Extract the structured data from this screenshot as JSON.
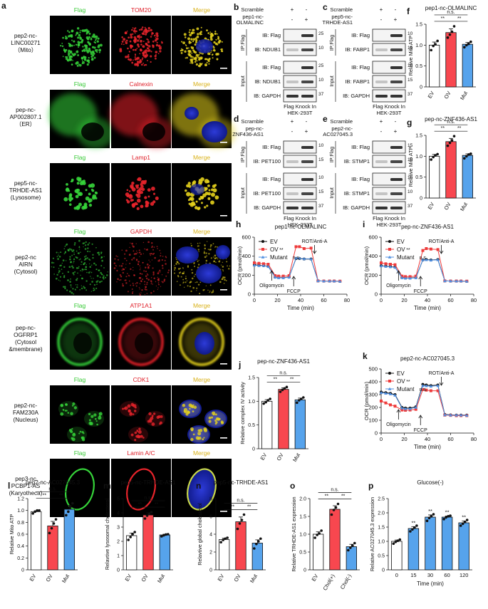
{
  "panel_letters": {
    "a": "a",
    "b": "b",
    "c": "c",
    "d": "d",
    "e": "e",
    "f": "f",
    "g": "g",
    "h": "h",
    "i": "i",
    "j": "j",
    "k": "k",
    "l": "l",
    "m": "m",
    "n": "n",
    "o": "o",
    "p": "p"
  },
  "panel_a": {
    "rows": [
      {
        "label": "pep2-nc-\nLINC00271\n（Mito）",
        "stains": [
          "Flag",
          "TOM20",
          "Merge"
        ],
        "pattern": "mito"
      },
      {
        "label": "pep-nc-\nAP002807.1\n（ER）",
        "stains": [
          "Flag",
          "Calnexin",
          "Merge"
        ],
        "pattern": "er"
      },
      {
        "label": "pep5-nc-\nTRHDE-AS1\n(Lysosome)",
        "stains": [
          "Flag",
          "Lamp1",
          "Merge"
        ],
        "pattern": "lyso"
      },
      {
        "label": "pep2-nc\nAIRN\n(Cytosol)",
        "stains": [
          "Flag",
          "GAPDH",
          "Merge"
        ],
        "pattern": "cyto"
      },
      {
        "label": "pep-nc-\nOGFRP1\n(Cytosol\n&membrane)",
        "stains": [
          "Flag",
          "ATP1A1",
          "Merge"
        ],
        "pattern": "mem"
      },
      {
        "label": "pep2-nc-\nFAM230A\n(Nucleus)",
        "stains": [
          "Flag",
          "CDK1",
          "Merge"
        ],
        "pattern": "nuc"
      },
      {
        "label": "pep3-nc\nPCBP1-AS\n(Karyotheca)",
        "stains": [
          "Flag",
          "Lamin A/C",
          "Merge"
        ],
        "pattern": "ring"
      }
    ]
  },
  "blots": [
    {
      "id": "b",
      "scramble": "Scramble",
      "construct": [
        "pep1-nc-",
        "OLMALINC"
      ],
      "signs1": [
        "+",
        "-"
      ],
      "signs2": [
        "-",
        "+"
      ],
      "ip": "IP:Flag",
      "input": "Input",
      "bands": [
        "IB: Flag",
        "IB: NDUB1",
        "IB: Flag",
        "IB: NDUB1",
        "IB: GAPDH"
      ],
      "mw": [
        "25",
        "10",
        "25",
        "10",
        "37"
      ],
      "footer": [
        "Flag Knock In",
        "HEK-293T"
      ]
    },
    {
      "id": "c",
      "scramble": "Scramble",
      "construct": [
        "pep5-nc-",
        "TRHDE-AS1"
      ],
      "signs1": [
        "+",
        "-"
      ],
      "signs2": [
        "-",
        "+"
      ],
      "ip": "IP:Flag",
      "input": "Input",
      "bands": [
        "IB: Flag",
        "IB: FABP1",
        "IB: Flag",
        "IB: FABP1",
        "IB: GAPDH"
      ],
      "mw": [
        "10",
        "15",
        "10",
        "15",
        "37"
      ],
      "footer": [
        "Flag Knock In",
        "HEK-293T"
      ]
    },
    {
      "id": "d",
      "scramble": "Scramble",
      "construct": [
        "pep-nc-",
        "ZNF436-AS1"
      ],
      "signs1": [
        "+",
        "-"
      ],
      "signs2": [
        "-",
        "+"
      ],
      "ip": "IP:Flag",
      "input": "Input",
      "bands": [
        "IB: Flag",
        "IB: PET100",
        "IB: Flag",
        "IB: PET100",
        "IB: GAPDH"
      ],
      "mw": [
        "10",
        "15",
        "10",
        "15",
        "37"
      ],
      "footer": [
        "Flag Knock In",
        "HEK-293T"
      ]
    },
    {
      "id": "e",
      "scramble": "Scramble",
      "construct": [
        "pep2-nc-",
        "AC027045.3"
      ],
      "signs1": [
        "+",
        "-"
      ],
      "signs2": [
        "-",
        "+"
      ],
      "ip": "IP:Flag",
      "input": "Input",
      "bands": [
        "IB: Flag",
        "IB: STMP1",
        "IB: Flag",
        "IB: STMP1",
        "IB: GAPDH"
      ],
      "mw": [
        "15",
        "10",
        "15",
        "10",
        "37"
      ],
      "footer": [
        "Flag Knock In",
        "HEK-293T"
      ]
    }
  ],
  "chart_data": [
    {
      "id": "f",
      "type": "bar",
      "title": "pep1-nc-OLMALINC",
      "ylabel": "Relative Mito ATP",
      "categories": [
        "EV",
        "OV",
        "Mut"
      ],
      "values": [
        1.0,
        1.3,
        1.02
      ],
      "points": [
        [
          0.88,
          0.98,
          1.02,
          1.1
        ],
        [
          1.18,
          1.25,
          1.32,
          1.45
        ],
        [
          0.95,
          1.0,
          1.03,
          1.08
        ]
      ],
      "ylim": [
        0,
        1.5
      ],
      "yticks": [
        0,
        0.5,
        1.0,
        1.5
      ],
      "colors": [
        "#ffffff",
        "#f8474f",
        "#56a3ec"
      ],
      "sig": [
        {
          "a": 0,
          "b": 2,
          "text": "n.s."
        },
        {
          "a": 0,
          "b": 1,
          "text": "**"
        },
        {
          "a": 1,
          "b": 2,
          "text": "**"
        }
      ]
    },
    {
      "id": "g",
      "type": "bar",
      "title": "pep-nc-ZNF436-AS1",
      "ylabel": "Relative Mito ATP",
      "categories": [
        "EV",
        "OV",
        "Mut"
      ],
      "values": [
        1.0,
        1.35,
        1.02
      ],
      "points": [
        [
          0.92,
          0.98,
          1.02,
          1.05
        ],
        [
          1.25,
          1.32,
          1.38,
          1.48
        ],
        [
          0.95,
          1.0,
          1.04,
          1.06
        ]
      ],
      "ylim": [
        0,
        1.5
      ],
      "yticks": [
        0,
        0.5,
        1.0,
        1.5
      ],
      "colors": [
        "#ffffff",
        "#f8474f",
        "#56a3ec"
      ],
      "sig": [
        {
          "a": 0,
          "b": 2,
          "text": "n.s."
        },
        {
          "a": 0,
          "b": 1,
          "text": "**"
        },
        {
          "a": 1,
          "b": 2,
          "text": "**"
        }
      ]
    },
    {
      "id": "j",
      "type": "bar",
      "title": "pep-nc-ZNF436-AS1",
      "ylabel": "Relative complex IV activity",
      "categories": [
        "EV",
        "OV",
        "Mut"
      ],
      "values": [
        1.0,
        1.25,
        1.03
      ],
      "points": [
        [
          0.95,
          0.98,
          1.02,
          1.05
        ],
        [
          1.2,
          1.24,
          1.27,
          1.3
        ],
        [
          0.97,
          1.02,
          1.05,
          1.08
        ]
      ],
      "ylim": [
        0,
        1.5
      ],
      "yticks": [
        0,
        0.5,
        1.0,
        1.5
      ],
      "colors": [
        "#ffffff",
        "#f8474f",
        "#56a3ec"
      ],
      "sig": [
        {
          "a": 0,
          "b": 2,
          "text": "n.s."
        },
        {
          "a": 0,
          "b": 1,
          "text": "**"
        },
        {
          "a": 1,
          "b": 2,
          "text": "**"
        }
      ]
    },
    {
      "id": "l",
      "type": "bar",
      "title": "pep2-nc-AC027045.3",
      "ylabel": "Relative Mito ATP",
      "categories": [
        "EV",
        "OV",
        "Mut"
      ],
      "values": [
        0.98,
        0.74,
        1.02
      ],
      "points": [
        [
          0.95,
          0.98,
          1.0,
          1.0
        ],
        [
          0.62,
          0.7,
          0.78,
          0.85
        ],
        [
          0.92,
          0.98,
          1.06,
          1.12
        ]
      ],
      "ylim": [
        0,
        1.2
      ],
      "yticks": [
        0,
        0.2,
        0.4,
        0.6,
        0.8,
        1.0,
        1.2
      ],
      "colors": [
        "#ffffff",
        "#f8474f",
        "#56a3ec"
      ],
      "sig": [
        {
          "a": 0,
          "b": 2,
          "text": "n.s."
        },
        {
          "a": 0,
          "b": 1,
          "text": "**"
        },
        {
          "a": 1,
          "b": 2,
          "text": "**"
        }
      ]
    },
    {
      "id": "m",
      "type": "bar",
      "title": "pep5-nc-TRHDE-AS1",
      "ylabel": "Relavtive lysosomal cholesterol",
      "categories": [
        "EV",
        "OV",
        "Mut"
      ],
      "values": [
        2.4,
        3.85,
        2.45
      ],
      "points": [
        [
          2.1,
          2.3,
          2.5,
          2.65
        ],
        [
          3.6,
          3.8,
          3.95,
          4.05
        ],
        [
          2.35,
          2.42,
          2.48,
          2.5
        ]
      ],
      "ylim": [
        0,
        5
      ],
      "yticks": [
        0,
        1,
        2,
        3,
        4,
        5
      ],
      "colors": [
        "#ffffff",
        "#f8474f",
        "#56a3ec"
      ],
      "sig": [
        {
          "a": 0,
          "b": 2,
          "text": "n.s."
        },
        {
          "a": 0,
          "b": 1,
          "text": "**"
        },
        {
          "a": 1,
          "b": 2,
          "text": "**"
        }
      ]
    },
    {
      "id": "n",
      "type": "bar",
      "title": "pep5-nc-TRHDE-AS1",
      "ylabel": "Relavtive global cholesterol",
      "categories": [
        "EV",
        "OV",
        "Mut"
      ],
      "values": [
        3.4,
        5.4,
        3.0
      ],
      "points": [
        [
          3.1,
          3.35,
          3.5,
          3.6
        ],
        [
          4.6,
          5.2,
          5.6,
          6.2
        ],
        [
          2.4,
          2.9,
          3.2,
          3.5
        ]
      ],
      "ylim": [
        0,
        8
      ],
      "yticks": [
        0,
        2,
        4,
        6,
        8
      ],
      "colors": [
        "#ffffff",
        "#f8474f",
        "#56a3ec"
      ],
      "sig": [
        {
          "a": 0,
          "b": 2,
          "text": "n.s."
        },
        {
          "a": 0,
          "b": 1,
          "text": "**"
        },
        {
          "a": 1,
          "b": 2,
          "text": "**"
        }
      ]
    },
    {
      "id": "o",
      "type": "bar",
      "title": "",
      "ylabel": "Relative TRHDE-AS1 expression",
      "categories": [
        "EV",
        "Chol(+)",
        "Chol(-)"
      ],
      "values": [
        1.0,
        1.7,
        0.65
      ],
      "points": [
        [
          0.9,
          0.98,
          1.02,
          1.1
        ],
        [
          1.55,
          1.68,
          1.75,
          1.85
        ],
        [
          0.55,
          0.62,
          0.68,
          0.75
        ]
      ],
      "ylim": [
        0,
        2.0
      ],
      "yticks": [
        0,
        0.5,
        1.0,
        1.5,
        2.0
      ],
      "colors": [
        "#ffffff",
        "#f8474f",
        "#56a3ec"
      ],
      "sig": [
        {
          "a": 0,
          "b": 2,
          "text": "n.s."
        },
        {
          "a": 0,
          "b": 1,
          "text": "**"
        },
        {
          "a": 1,
          "b": 2,
          "text": "**"
        }
      ]
    },
    {
      "id": "p",
      "type": "bar",
      "title": "Glucose(-)",
      "ylabel": "Relative AC027045.3 expression",
      "xlabel": "Time (min)",
      "categories": [
        "0",
        "15",
        "30",
        "60",
        "120"
      ],
      "values": [
        1.0,
        1.45,
        1.85,
        1.85,
        1.65
      ],
      "points": [
        [
          0.92,
          0.98,
          1.02,
          1.06
        ],
        [
          1.35,
          1.42,
          1.48,
          1.55
        ],
        [
          1.72,
          1.82,
          1.88,
          1.95
        ],
        [
          1.78,
          1.84,
          1.88,
          1.9
        ],
        [
          1.55,
          1.62,
          1.68,
          1.75
        ]
      ],
      "ylim": [
        0,
        2.5
      ],
      "yticks": [
        0,
        0.5,
        1.0,
        1.5,
        2.0,
        2.5
      ],
      "colors": [
        "#ffffff",
        "#56a3ec",
        "#56a3ec",
        "#56a3ec",
        "#56a3ec"
      ],
      "sig_single": [
        "",
        "**",
        "**",
        "**",
        "**"
      ]
    },
    {
      "id": "h",
      "type": "line",
      "title": "pep1-nc-OLMALINC",
      "ylabel": "OCR (pmol/min)",
      "xlabel": "Time (min)",
      "x": [
        0,
        4,
        8,
        12,
        18,
        21,
        25,
        30,
        36,
        39,
        43,
        49,
        55,
        60,
        65,
        69,
        74
      ],
      "xlim": [
        0,
        80
      ],
      "xticks": [
        0,
        20,
        40,
        60,
        80
      ],
      "ylim": [
        0,
        600
      ],
      "yticks": [
        0,
        200,
        400,
        600
      ],
      "series": [
        {
          "name": "EV",
          "sig": "",
          "color": "#111111",
          "marker": "circle",
          "values": [
            310,
            305,
            300,
            295,
            180,
            175,
            175,
            180,
            375,
            375,
            370,
            370,
            140,
            138,
            138,
            138,
            135
          ]
        },
        {
          "name": "OV",
          "sig": "**",
          "color": "#ee3b3b",
          "marker": "square",
          "values": [
            330,
            325,
            320,
            315,
            195,
            190,
            190,
            195,
            500,
            500,
            480,
            485,
            140,
            138,
            138,
            138,
            137
          ]
        },
        {
          "name": "Mutant",
          "sig": "n.s.",
          "color": "#4f8fe0",
          "marker": "triangle",
          "values": [
            305,
            300,
            300,
            290,
            178,
            172,
            172,
            178,
            380,
            378,
            372,
            372,
            140,
            138,
            138,
            138,
            135
          ]
        }
      ],
      "annotations": [
        {
          "text": "Oligomycin",
          "x": 15
        },
        {
          "text": "FCCP",
          "x": 34
        },
        {
          "text": "ROT/Anti-A",
          "x": 52
        }
      ]
    },
    {
      "id": "i",
      "type": "line",
      "title": "pep-nc-ZNF436-AS1",
      "ylabel": "OCR (pmol/min)",
      "xlabel": "Time (min)",
      "x": [
        0,
        4,
        8,
        12,
        18,
        21,
        25,
        30,
        36,
        39,
        43,
        49,
        55,
        60,
        65,
        69,
        74
      ],
      "xlim": [
        0,
        80
      ],
      "xticks": [
        0,
        20,
        40,
        60,
        80
      ],
      "ylim": [
        0,
        600
      ],
      "yticks": [
        0,
        200,
        400,
        600
      ],
      "series": [
        {
          "name": "EV",
          "sig": "",
          "color": "#111111",
          "marker": "circle",
          "values": [
            300,
            295,
            290,
            285,
            175,
            170,
            170,
            175,
            360,
            365,
            360,
            365,
            140,
            138,
            138,
            138,
            135
          ]
        },
        {
          "name": "OV",
          "sig": "**",
          "color": "#ee3b3b",
          "marker": "square",
          "values": [
            330,
            320,
            315,
            310,
            190,
            185,
            185,
            190,
            460,
            480,
            475,
            470,
            140,
            138,
            138,
            138,
            137
          ]
        },
        {
          "name": "Mutant",
          "sig": "n.s.",
          "color": "#4f8fe0",
          "marker": "triangle",
          "values": [
            298,
            292,
            288,
            282,
            172,
            168,
            168,
            172,
            362,
            362,
            358,
            362,
            140,
            138,
            138,
            138,
            135
          ]
        }
      ],
      "annotations": [
        {
          "text": "Oligomycin",
          "x": 15
        },
        {
          "text": "FCCP",
          "x": 34
        },
        {
          "text": "ROT/Anti-A",
          "x": 52
        }
      ]
    },
    {
      "id": "k",
      "type": "line",
      "title": "pep2-nc-AC027045.3",
      "ylabel": "OCR (pmol/min)",
      "xlabel": "Time (min)",
      "x": [
        0,
        4,
        8,
        12,
        18,
        21,
        25,
        30,
        36,
        39,
        43,
        49,
        55,
        60,
        65,
        69,
        74
      ],
      "xlim": [
        0,
        80
      ],
      "xticks": [
        0,
        20,
        40,
        60,
        80
      ],
      "ylim": [
        0,
        500
      ],
      "yticks": [
        0,
        100,
        200,
        300,
        400,
        500
      ],
      "series": [
        {
          "name": "EV",
          "sig": "",
          "color": "#111111",
          "marker": "circle",
          "values": [
            320,
            315,
            310,
            300,
            200,
            195,
            195,
            205,
            380,
            375,
            370,
            375,
            145,
            142,
            140,
            140,
            140
          ]
        },
        {
          "name": "OV",
          "sig": "**",
          "color": "#ee3b3b",
          "marker": "square",
          "values": [
            250,
            235,
            220,
            210,
            180,
            178,
            180,
            185,
            340,
            335,
            330,
            330,
            140,
            138,
            136,
            136,
            136
          ]
        },
        {
          "name": "Mutant",
          "sig": "n.s.",
          "color": "#4f8fe0",
          "marker": "triangle",
          "values": [
            315,
            310,
            305,
            295,
            195,
            190,
            190,
            200,
            370,
            368,
            365,
            370,
            142,
            140,
            140,
            140,
            138
          ]
        }
      ],
      "annotations": [
        {
          "text": "Oligomycin",
          "x": 15
        },
        {
          "text": "FCCP",
          "x": 34
        },
        {
          "text": "ROT/Anti-A",
          "x": 52
        }
      ]
    }
  ]
}
